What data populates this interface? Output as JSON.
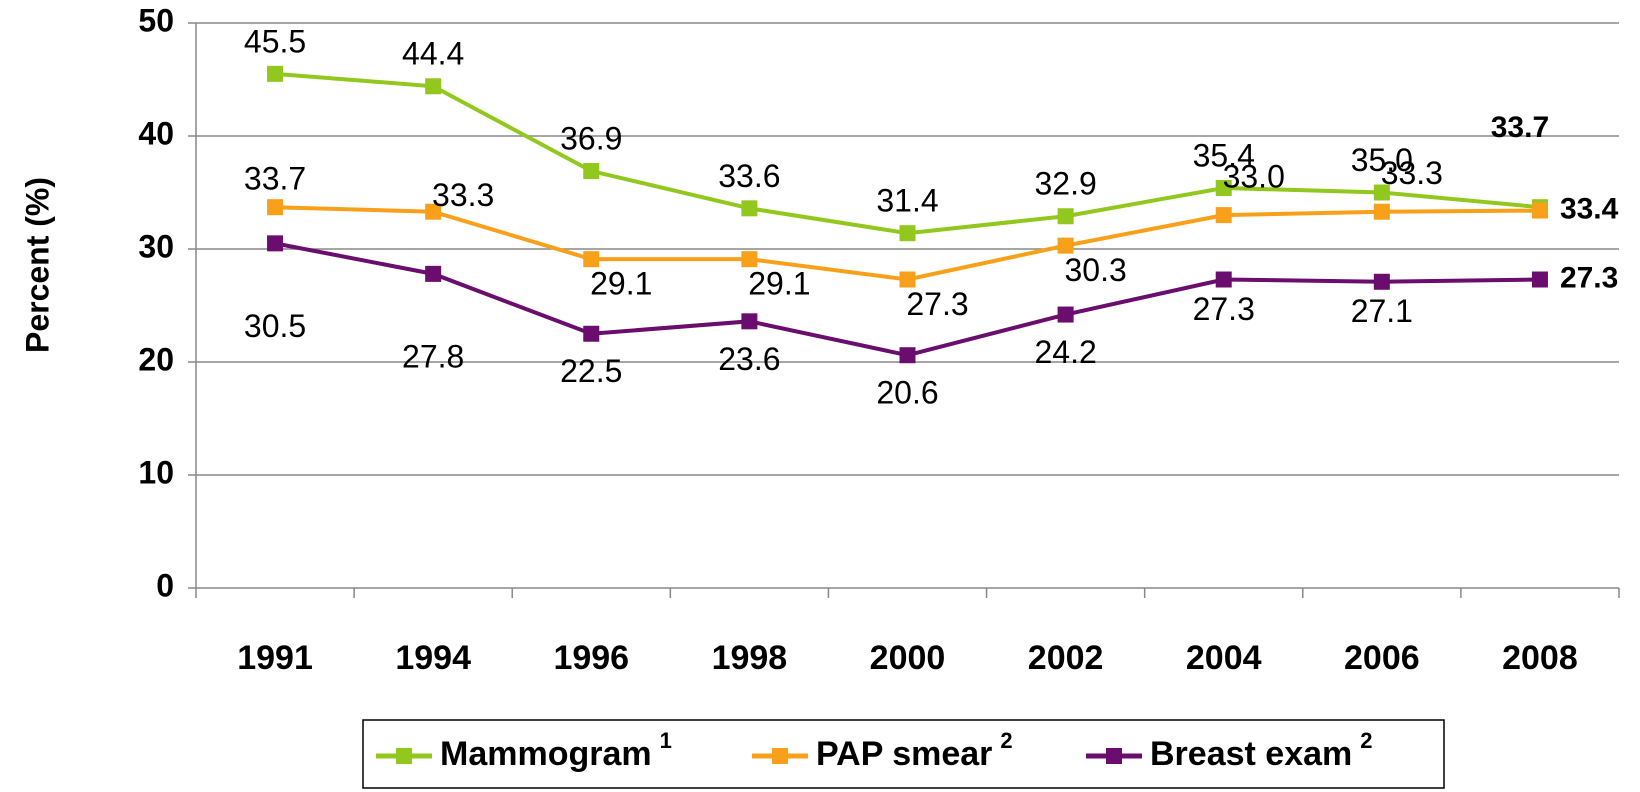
{
  "chart_data": {
    "type": "line",
    "y_label": "Percent (%)",
    "categories": [
      "1991",
      "1994",
      "1996",
      "1998",
      "2000",
      "2002",
      "2004",
      "2006",
      "2008"
    ],
    "series": [
      {
        "name": "Mammogram",
        "footnote": "1",
        "color": "#92c81e",
        "values": [
          45.5,
          44.4,
          36.9,
          33.6,
          31.4,
          32.9,
          35.4,
          35.0,
          33.7
        ],
        "value_labels": [
          "45.5",
          "44.4",
          "36.9",
          "33.6",
          "31.4",
          "32.9",
          "35.4",
          "35.0",
          "33.7"
        ]
      },
      {
        "name": "PAP smear",
        "footnote": "2",
        "color": "#f9a01b",
        "values": [
          33.7,
          33.3,
          29.1,
          29.1,
          27.3,
          30.3,
          33.0,
          33.3,
          33.4
        ],
        "value_labels": [
          "33.7",
          "33.3",
          "29.1",
          "29.1",
          "27.3",
          "30.3",
          "33.0",
          "33.3",
          "33.4"
        ]
      },
      {
        "name": "Breast exam",
        "footnote": "2",
        "color": "#6a0d6e",
        "values": [
          30.5,
          27.8,
          22.5,
          23.6,
          20.6,
          24.2,
          27.3,
          27.1,
          27.3
        ],
        "value_labels": [
          "30.5",
          "27.8",
          "22.5",
          "23.6",
          "20.6",
          "24.2",
          "27.3",
          "27.1",
          "27.3"
        ]
      }
    ],
    "ylim": [
      0,
      50
    ],
    "yticks": [
      0,
      10,
      20,
      30,
      40,
      50
    ],
    "grid": true,
    "legend": "bottom"
  }
}
